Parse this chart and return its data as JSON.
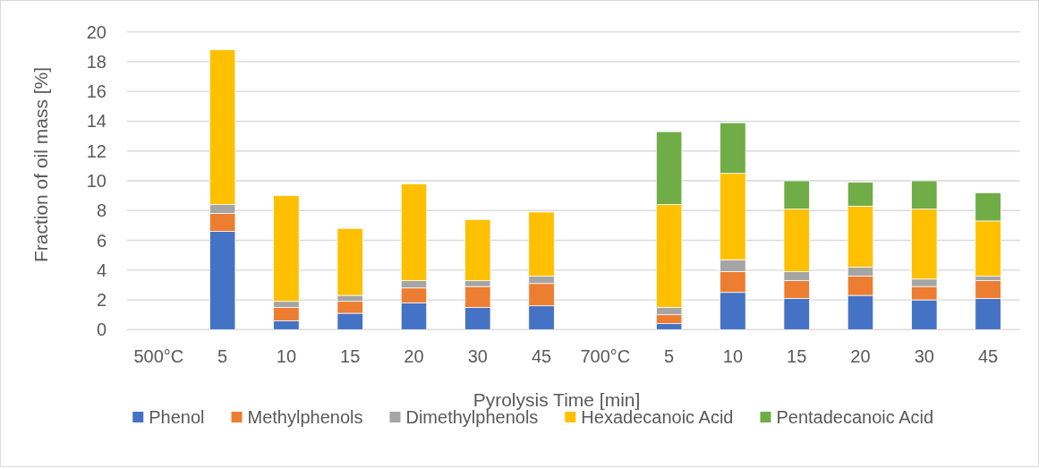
{
  "chart_data": {
    "type": "bar",
    "stacked": true,
    "xlabel": "Pyrolysis Time [min]",
    "ylabel": "Fraction of oil mass [%]",
    "categories": [
      "500°C",
      "5",
      "10",
      "15",
      "20",
      "30",
      "45",
      "700°C",
      "5",
      "10",
      "15",
      "20",
      "30",
      "45"
    ],
    "series": [
      {
        "name": "Phenol",
        "color": "#4472c4",
        "values": [
          null,
          6.6,
          0.6,
          1.1,
          1.8,
          1.5,
          1.6,
          null,
          0.4,
          2.5,
          2.1,
          2.3,
          2.0,
          2.1
        ]
      },
      {
        "name": "Methylphenols",
        "color": "#ed7d31",
        "values": [
          null,
          1.2,
          0.9,
          0.8,
          1.0,
          1.4,
          1.5,
          null,
          0.6,
          1.4,
          1.2,
          1.3,
          0.9,
          1.2
        ]
      },
      {
        "name": "Dimethylphenols",
        "color": "#a5a5a5",
        "values": [
          null,
          0.6,
          0.4,
          0.4,
          0.5,
          0.4,
          0.5,
          null,
          0.5,
          0.8,
          0.6,
          0.6,
          0.5,
          0.3
        ]
      },
      {
        "name": "Hexadecanoic Acid",
        "color": "#ffc000",
        "values": [
          null,
          10.4,
          7.1,
          4.5,
          6.5,
          4.1,
          4.3,
          null,
          6.9,
          5.8,
          4.2,
          4.1,
          4.7,
          3.7
        ]
      },
      {
        "name": "Pentadecanoic Acid",
        "color": "#70ad47",
        "values": [
          null,
          null,
          null,
          null,
          null,
          null,
          null,
          null,
          4.9,
          3.4,
          1.9,
          1.6,
          1.9,
          1.9
        ]
      }
    ],
    "ylim": [
      0,
      20
    ],
    "yticks": [
      0,
      2,
      4,
      6,
      8,
      10,
      12,
      14,
      16,
      18,
      20
    ],
    "grid": "y",
    "legend": "bottom"
  }
}
